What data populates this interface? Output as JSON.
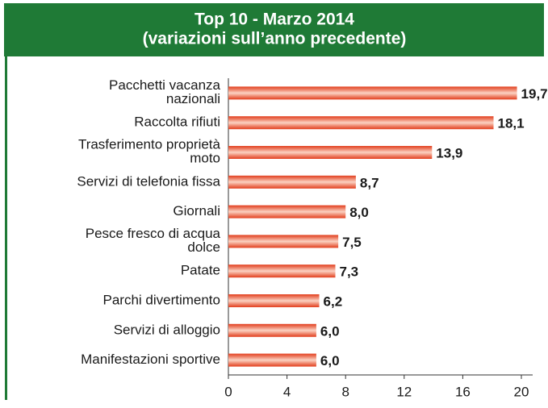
{
  "chart_data": {
    "type": "hbar",
    "title": "Top 10 - Marzo 2014",
    "subtitle": "(variazioni sull’anno precedente)",
    "categories": [
      "Pacchetti vacanza\nnazionali",
      "Raccolta rifiuti",
      "Trasferimento proprietà\nmoto",
      "Servizi di telefonia fissa",
      "Giornali",
      "Pesce fresco di acqua\ndolce",
      "Patate",
      "Parchi divertimento",
      "Servizi di alloggio",
      "Manifestazioni sportive"
    ],
    "values": [
      19.7,
      18.1,
      13.9,
      8.7,
      8.0,
      7.5,
      7.3,
      6.2,
      6.0,
      6.0
    ],
    "value_labels": [
      "19,7",
      "18,1",
      "13,9",
      "8,7",
      "8,0",
      "7,5",
      "7,3",
      "6,2",
      "6,0",
      "6,0"
    ],
    "color": "#e8502a",
    "xlim": [
      0,
      20
    ],
    "xticks": [
      0,
      4,
      8,
      12,
      16,
      20
    ]
  }
}
